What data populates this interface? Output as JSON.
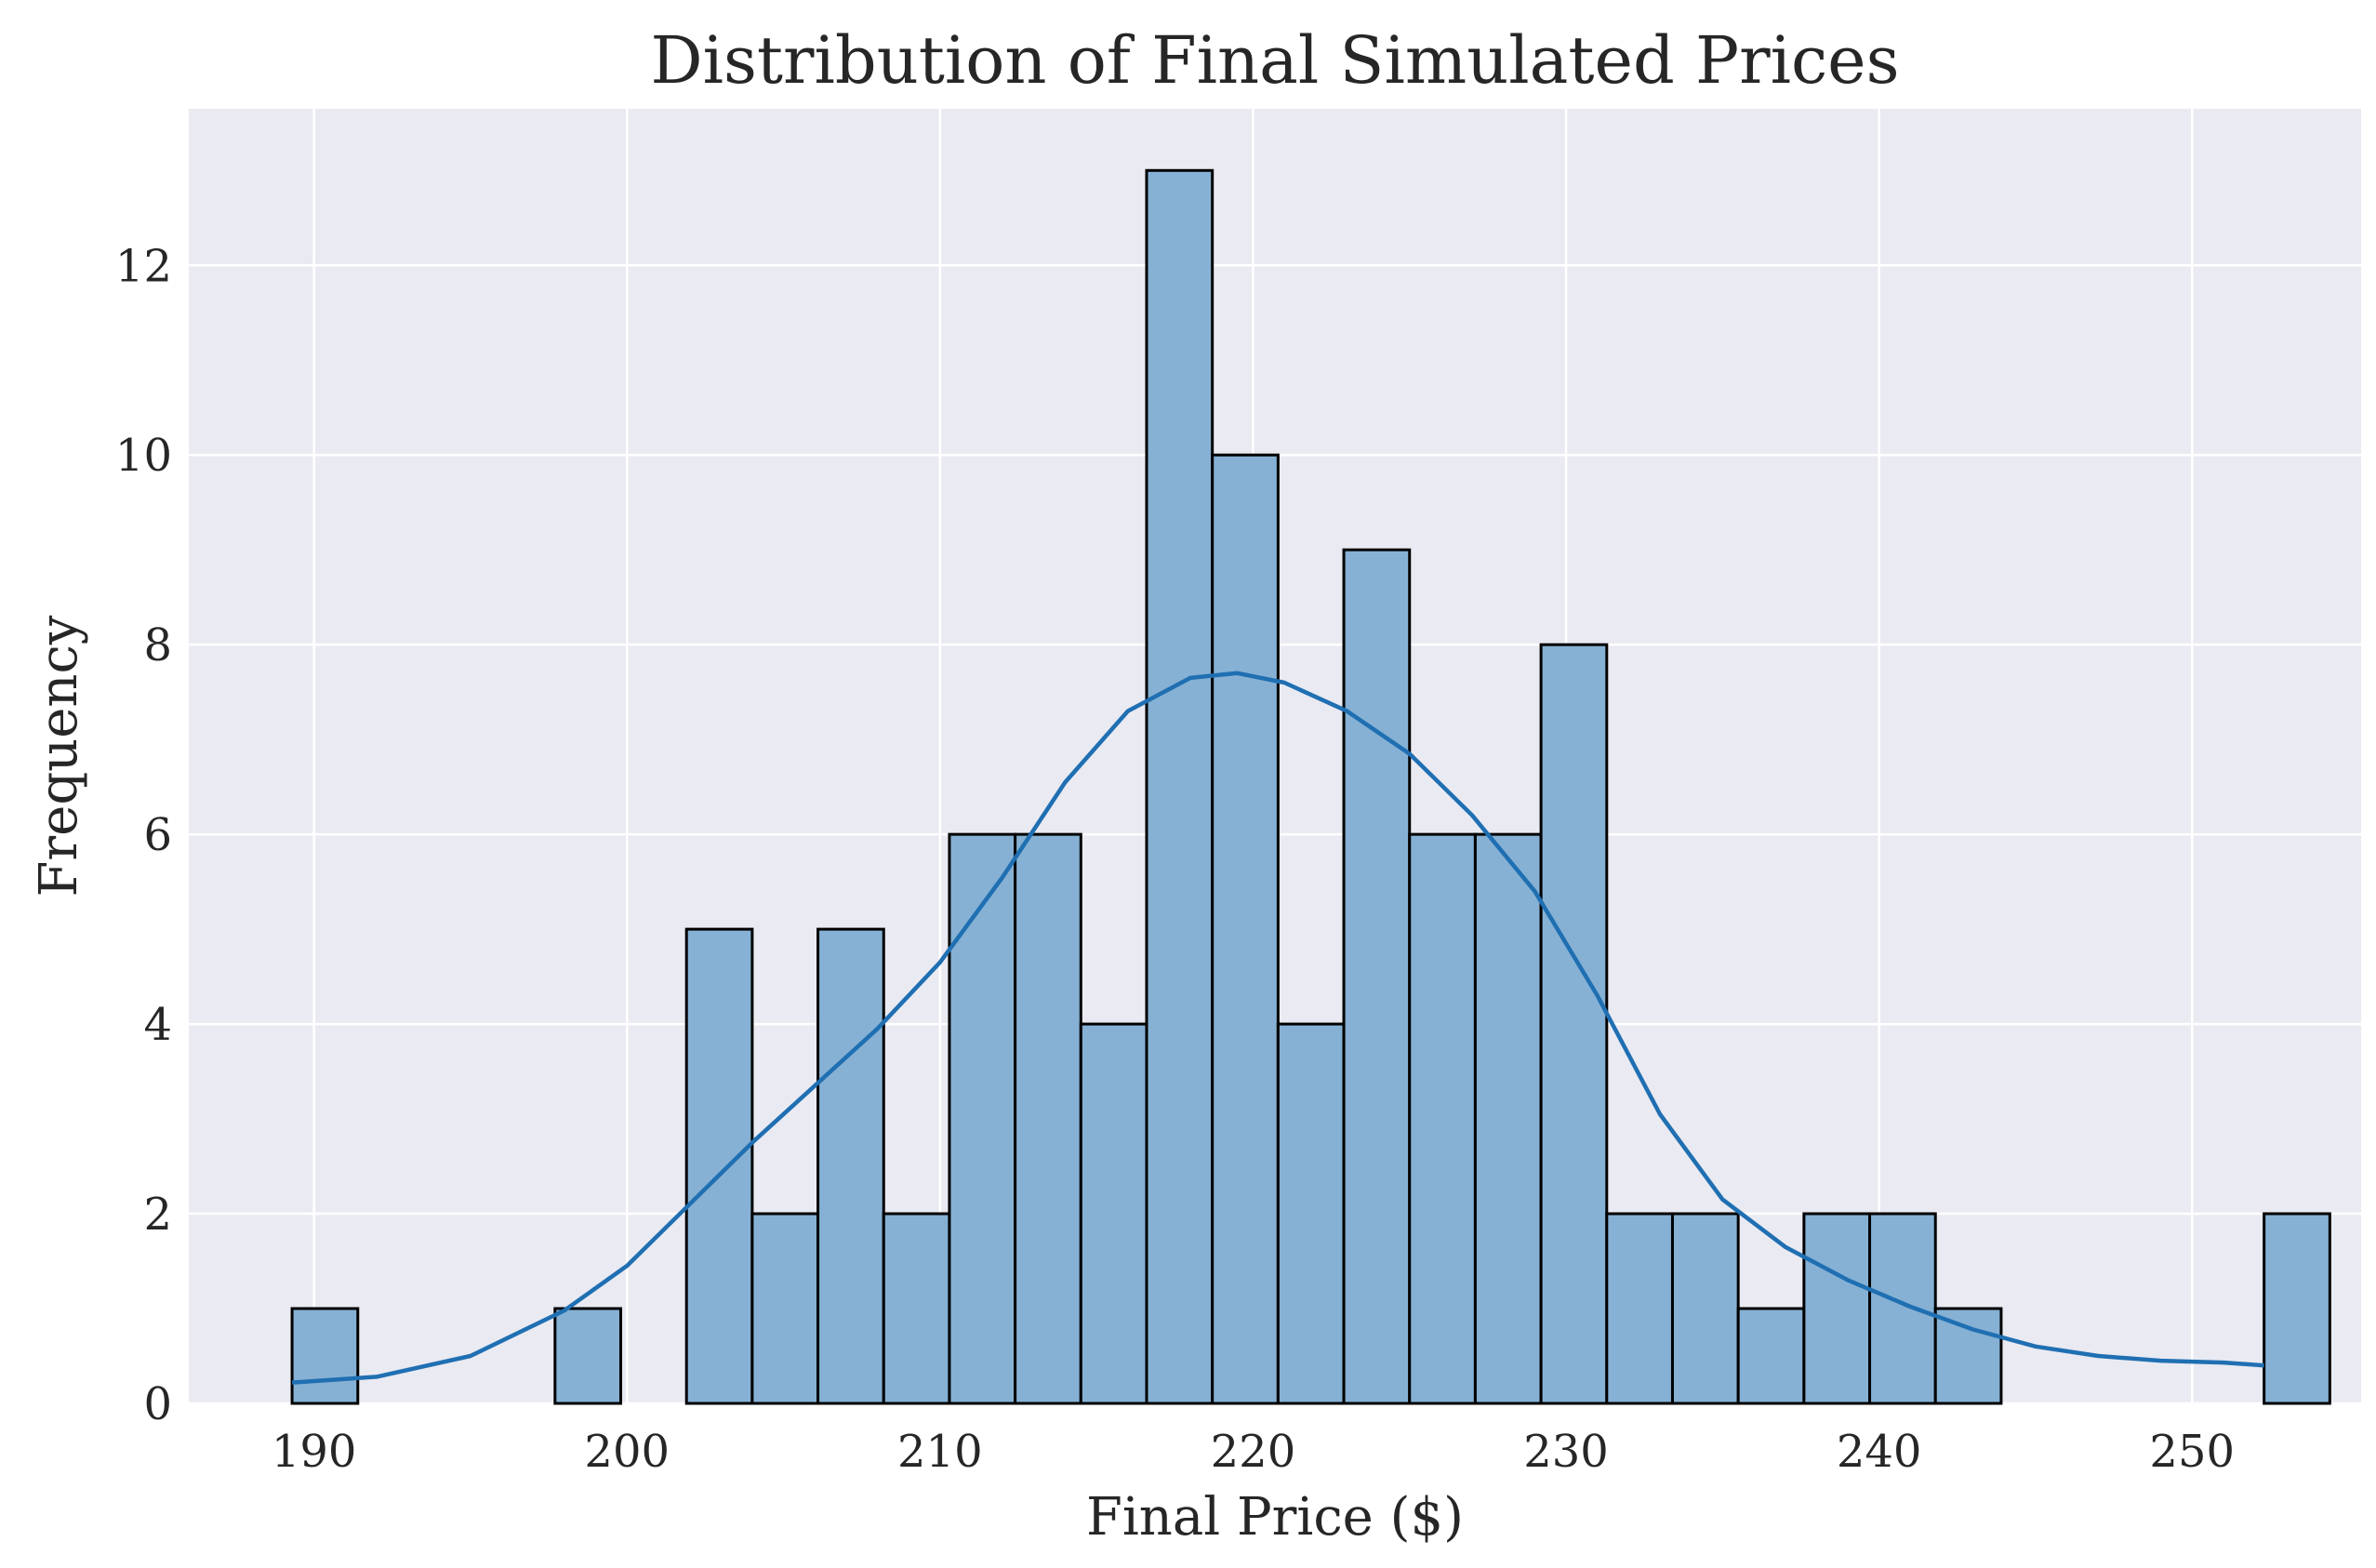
{
  "chart_data": {
    "type": "bar",
    "title": "Distribution of Final Simulated Prices",
    "xlabel": "Final Price ($)",
    "ylabel": "Frequency",
    "xlim": [
      186.0,
      255.4
    ],
    "ylim": [
      0,
      13.65
    ],
    "x_ticks": [
      190,
      200,
      210,
      220,
      230,
      240,
      250
    ],
    "y_ticks": [
      0,
      2,
      4,
      6,
      8,
      10,
      12
    ],
    "grid": true,
    "legend": "none",
    "bin_start": 189.3,
    "bin_width": 2.1,
    "bin_counts": [
      1,
      0,
      0,
      0,
      1,
      0,
      5,
      2,
      5,
      2,
      6,
      6,
      4,
      13,
      10,
      4,
      9,
      6,
      6,
      8,
      2,
      2,
      1,
      2,
      2,
      1,
      0,
      0,
      0,
      0,
      2
    ],
    "kde": {
      "x": [
        189.3,
        192,
        195,
        198,
        200,
        202,
        204,
        206,
        208,
        210,
        212,
        214,
        216,
        218,
        219.5,
        221,
        223,
        225,
        227,
        229,
        231,
        233,
        235,
        237,
        239,
        241,
        243,
        245,
        247,
        249,
        251,
        252.3
      ],
      "y": [
        0.22,
        0.28,
        0.5,
        0.98,
        1.45,
        2.1,
        2.75,
        3.35,
        3.95,
        4.65,
        5.55,
        6.55,
        7.3,
        7.65,
        7.7,
        7.6,
        7.3,
        6.85,
        6.2,
        5.4,
        4.3,
        3.05,
        2.15,
        1.65,
        1.3,
        1.02,
        0.78,
        0.6,
        0.5,
        0.45,
        0.43,
        0.4
      ]
    },
    "colors": {
      "bar_fill": "#86b1d4",
      "bar_edge": "#000000",
      "kde_line": "#1f6fb2",
      "plot_background": "#eaeaf2",
      "grid": "#ffffff"
    }
  }
}
